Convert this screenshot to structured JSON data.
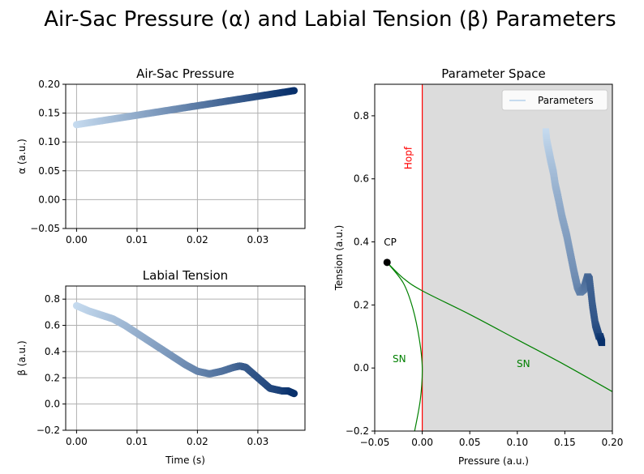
{
  "suptitle": "Air-Sac Pressure (α) and Labial Tension (β) Parameters",
  "colors": {
    "blues_light": "#c6dbef",
    "blues_dark": "#08306b",
    "hopf_line": "#ff0000",
    "sn_curve": "#008000",
    "shaded_region": "#dcdcdc",
    "cp_point": "#000000"
  },
  "chart_data": [
    {
      "id": "air_sac",
      "type": "scatter",
      "title": "Air-Sac Pressure",
      "xlabel": "",
      "ylabel": "α (a.u.)",
      "xlim": [
        -0.0018,
        0.0378
      ],
      "ylim": [
        -0.05,
        0.2
      ],
      "xticks": [
        0.0,
        0.01,
        0.02,
        0.03
      ],
      "xtick_labels": [
        "0.00",
        "0.01",
        "0.02",
        "0.03"
      ],
      "yticks": [
        -0.05,
        0.0,
        0.05,
        0.1,
        0.15,
        0.2
      ],
      "ytick_labels": [
        "−0.05",
        "0.00",
        "0.05",
        "0.10",
        "0.15",
        "0.20"
      ],
      "grid": true,
      "colormap": "Blues",
      "x": [
        0.0,
        0.036
      ],
      "y": [
        0.13,
        0.189
      ]
    },
    {
      "id": "labial_tension",
      "type": "scatter",
      "title": "Labial Tension",
      "xlabel": "Time (s)",
      "ylabel": "β (a.u.)",
      "xlim": [
        -0.0018,
        0.0378
      ],
      "ylim": [
        -0.2,
        0.9
      ],
      "xticks": [
        0.0,
        0.01,
        0.02,
        0.03
      ],
      "xtick_labels": [
        "0.00",
        "0.01",
        "0.02",
        "0.03"
      ],
      "yticks": [
        -0.2,
        0.0,
        0.2,
        0.4,
        0.6,
        0.8
      ],
      "ytick_labels": [
        "−0.2",
        "0.0",
        "0.2",
        "0.4",
        "0.6",
        "0.8"
      ],
      "grid": true,
      "colormap": "Blues",
      "x": [
        0.0,
        0.002,
        0.004,
        0.006,
        0.008,
        0.01,
        0.012,
        0.014,
        0.016,
        0.018,
        0.02,
        0.022,
        0.024,
        0.026,
        0.027,
        0.028,
        0.03,
        0.032,
        0.034,
        0.035,
        0.036
      ],
      "y": [
        0.75,
        0.71,
        0.68,
        0.65,
        0.6,
        0.54,
        0.48,
        0.42,
        0.36,
        0.3,
        0.25,
        0.23,
        0.25,
        0.28,
        0.29,
        0.28,
        0.2,
        0.12,
        0.1,
        0.1,
        0.08
      ]
    },
    {
      "id": "parameter_space",
      "type": "line",
      "title": "Parameter Space",
      "xlabel": "Pressure (a.u.)",
      "ylabel": "Tension (a.u.)",
      "xlim": [
        -0.05,
        0.2
      ],
      "ylim": [
        -0.2,
        0.9
      ],
      "xticks": [
        -0.05,
        0.0,
        0.05,
        0.1,
        0.15,
        0.2
      ],
      "xtick_labels": [
        "−0.05",
        "0.00",
        "0.05",
        "0.10",
        "0.15",
        "0.20"
      ],
      "yticks": [
        -0.2,
        0.0,
        0.2,
        0.4,
        0.6,
        0.8
      ],
      "ytick_labels": [
        "−0.2",
        "0.0",
        "0.2",
        "0.4",
        "0.6",
        "0.8"
      ],
      "grid": false,
      "legend": {
        "label": "Parameters",
        "placement": "top-right"
      },
      "series": [
        {
          "name": "Parameters",
          "x": [
            0.13,
            0.131,
            0.133,
            0.135,
            0.138,
            0.14,
            0.143,
            0.147,
            0.152,
            0.156,
            0.16,
            0.163,
            0.166,
            0.17,
            0.172,
            0.174,
            0.176,
            0.179,
            0.182,
            0.184,
            0.186,
            0.187,
            0.188,
            0.189
          ],
          "y": [
            0.75,
            0.72,
            0.69,
            0.66,
            0.62,
            0.58,
            0.54,
            0.48,
            0.42,
            0.36,
            0.3,
            0.26,
            0.24,
            0.25,
            0.27,
            0.29,
            0.28,
            0.2,
            0.14,
            0.12,
            0.1,
            0.1,
            0.09,
            0.08
          ]
        }
      ],
      "hopf": {
        "label": "Hopf",
        "x": 0.0
      },
      "sn_upper": {
        "label": "SN",
        "x": [
          -0.037,
          -0.02,
          0.0,
          0.05,
          0.1,
          0.15,
          0.2
        ],
        "y": [
          0.335,
          0.285,
          0.245,
          0.17,
          0.09,
          0.01,
          -0.075
        ]
      },
      "sn_lower": {
        "label": "SN",
        "x": [
          -0.037,
          -0.02,
          -0.01,
          -0.003,
          0.0,
          -0.002,
          -0.008
        ],
        "y": [
          0.335,
          0.27,
          0.19,
          0.09,
          0.0,
          -0.1,
          -0.2
        ]
      },
      "cusp_point": {
        "label": "CP",
        "x": -0.037,
        "y": 0.335
      }
    }
  ]
}
